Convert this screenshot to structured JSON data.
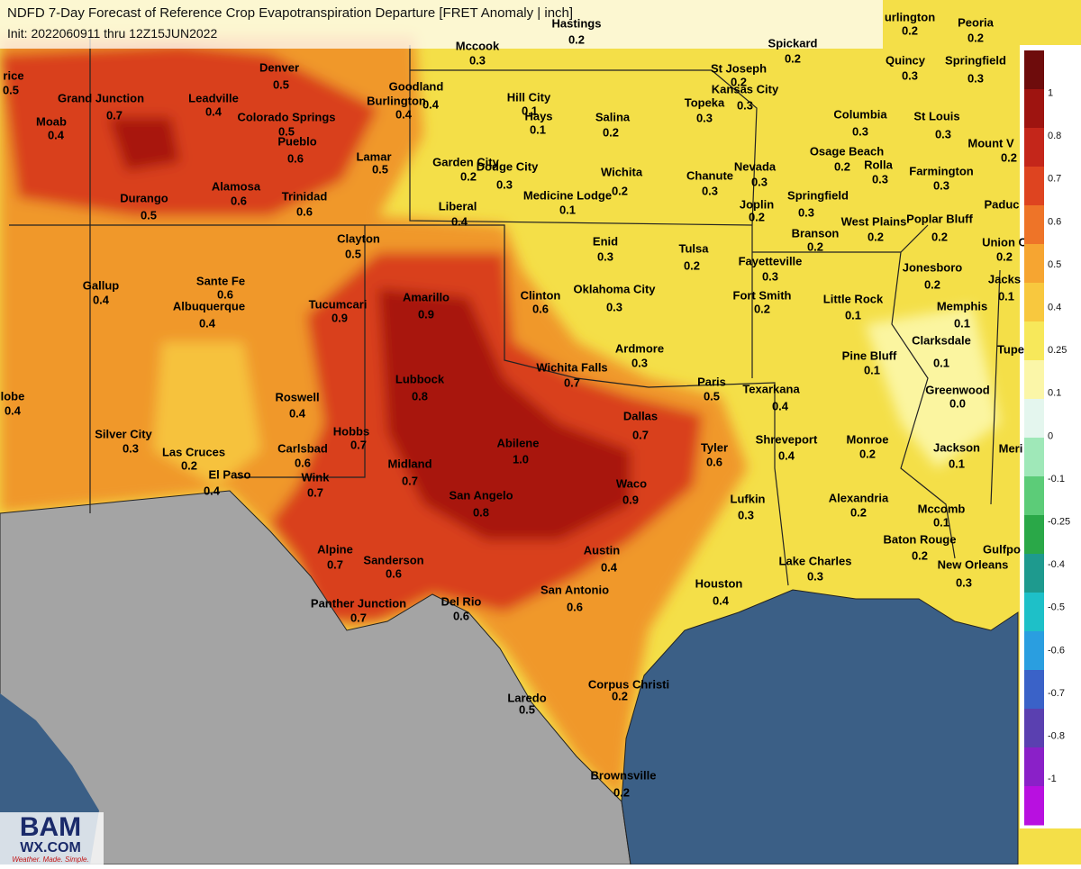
{
  "header": {
    "title": "NDFD 7-Day Forecast of Reference Crop Evapotranspiration Departure [FRET Anomaly | inch]",
    "subtitle": "Init: 2022060911 thru 12Z15JUN2022"
  },
  "cities": [
    {
      "name": "rice",
      "value": "0.5"
    },
    {
      "name": "Grand Junction",
      "value": "0.7"
    },
    {
      "name": "Moab",
      "value": "0.4"
    },
    {
      "name": "Denver",
      "value": "0.5"
    },
    {
      "name": "Leadville",
      "value": "0.4"
    },
    {
      "name": "Colorado Springs",
      "value": "0.5"
    },
    {
      "name": "Pueblo",
      "value": "0.6"
    },
    {
      "name": "Goodland",
      "value": "0.4"
    },
    {
      "name": "Burlington",
      "value": "0.4"
    },
    {
      "name": "Mccook",
      "value": "0.3"
    },
    {
      "name": "Hastings",
      "value": "0.2"
    },
    {
      "name": "Hill City",
      "value": "0.1"
    },
    {
      "name": "Hays",
      "value": "0.1"
    },
    {
      "name": "Salina",
      "value": "0.2"
    },
    {
      "name": "St Joseph",
      "value": "0.2"
    },
    {
      "name": "Kansas City",
      "value": "0.3"
    },
    {
      "name": "Topeka",
      "value": "0.3"
    },
    {
      "name": "Spickard",
      "value": "0.2"
    },
    {
      "name": "Quincy",
      "value": "0.3"
    },
    {
      "name": "Springfield",
      "value": "0.3"
    },
    {
      "name": "Peoria",
      "value": "0.2"
    },
    {
      "name": "urlington",
      "value": "0.2"
    },
    {
      "name": "Columbia",
      "value": "0.3"
    },
    {
      "name": "St Louis",
      "value": "0.3"
    },
    {
      "name": "Mount V",
      "value": "0.2"
    },
    {
      "name": "Lamar",
      "value": "0.5"
    },
    {
      "name": "Alamosa",
      "value": "0.6"
    },
    {
      "name": "Trinidad",
      "value": "0.6"
    },
    {
      "name": "Durango",
      "value": "0.5"
    },
    {
      "name": "Garden City",
      "value": "0.2"
    },
    {
      "name": "Dodge City",
      "value": "0.3"
    },
    {
      "name": "Wichita",
      "value": "0.2"
    },
    {
      "name": "Medicine Lodge",
      "value": "0.1"
    },
    {
      "name": "Liberal",
      "value": "0.4"
    },
    {
      "name": "Chanute",
      "value": "0.3"
    },
    {
      "name": "Nevada",
      "value": "0.3"
    },
    {
      "name": "Osage Beach",
      "value": "0.2"
    },
    {
      "name": "Rolla",
      "value": "0.3"
    },
    {
      "name": "Farmington",
      "value": "0.3"
    },
    {
      "name": "Joplin",
      "value": "0.2"
    },
    {
      "name": "Springfield",
      "value": "0.3"
    },
    {
      "name": "Branson",
      "value": "0.2"
    },
    {
      "name": "West Plains",
      "value": "0.2"
    },
    {
      "name": "Poplar Bluff",
      "value": "0.2"
    },
    {
      "name": "Union C",
      "value": "0.2"
    },
    {
      "name": "Clayton",
      "value": "0.5"
    },
    {
      "name": "Gallup",
      "value": "0.4"
    },
    {
      "name": "Sante Fe",
      "value": "0.6"
    },
    {
      "name": "Albuquerque",
      "value": "0.4"
    },
    {
      "name": "Tucumcari",
      "value": "0.9"
    },
    {
      "name": "Amarillo",
      "value": "0.9"
    },
    {
      "name": "Enid",
      "value": "0.3"
    },
    {
      "name": "Tulsa",
      "value": "0.2"
    },
    {
      "name": "Fayetteville",
      "value": "0.3"
    },
    {
      "name": "Jonesboro",
      "value": "0.2"
    },
    {
      "name": "Jacks",
      "value": "0.1"
    },
    {
      "name": "Clinton",
      "value": "0.6"
    },
    {
      "name": "Oklahoma City",
      "value": "0.3"
    },
    {
      "name": "Fort Smith",
      "value": "0.2"
    },
    {
      "name": "Little Rock",
      "value": "0.1"
    },
    {
      "name": "Memphis",
      "value": "0.1"
    },
    {
      "name": "Ardmore",
      "value": "0.3"
    },
    {
      "name": "Wichita Falls",
      "value": "0.7"
    },
    {
      "name": "Clarksdale",
      "value": "0.1"
    },
    {
      "name": "Pine Bluff",
      "value": "0.1"
    },
    {
      "name": "Lubbock",
      "value": "0.8"
    },
    {
      "name": "Roswell",
      "value": "0.4"
    },
    {
      "name": "Paris",
      "value": "0.5"
    },
    {
      "name": "Texarkana",
      "value": "0.4"
    },
    {
      "name": "Greenwood",
      "value": "0.0"
    },
    {
      "name": "lobe",
      "value": "0.4"
    },
    {
      "name": "Silver City",
      "value": "0.3"
    },
    {
      "name": "Hobbs",
      "value": "0.7"
    },
    {
      "name": "Dallas",
      "value": "0.7"
    },
    {
      "name": "Shreveport",
      "value": "0.4"
    },
    {
      "name": "Monroe",
      "value": "0.2"
    },
    {
      "name": "Jackson",
      "value": "0.1"
    },
    {
      "name": "Las Cruces",
      "value": "0.2"
    },
    {
      "name": "Carlsbad",
      "value": "0.6"
    },
    {
      "name": "Abilene",
      "value": "1.0"
    },
    {
      "name": "Tyler",
      "value": "0.6"
    },
    {
      "name": "Midland",
      "value": "0.7"
    },
    {
      "name": "El Paso",
      "value": "0.4"
    },
    {
      "name": "Wink",
      "value": "0.7"
    },
    {
      "name": "Waco",
      "value": "0.9"
    },
    {
      "name": "Lufkin",
      "value": "0.3"
    },
    {
      "name": "Alexandria",
      "value": "0.2"
    },
    {
      "name": "Mccomb",
      "value": "0.1"
    },
    {
      "name": "San Angelo",
      "value": "0.8"
    },
    {
      "name": "Baton Rouge",
      "value": "0.2"
    },
    {
      "name": "Alpine",
      "value": "0.7"
    },
    {
      "name": "Sanderson",
      "value": "0.6"
    },
    {
      "name": "Austin",
      "value": "0.4"
    },
    {
      "name": "Lake Charles",
      "value": "0.3"
    },
    {
      "name": "New Orleans",
      "value": "0.3"
    },
    {
      "name": "Houston",
      "value": "0.4"
    },
    {
      "name": "San Antonio",
      "value": "0.6"
    },
    {
      "name": "Panther Junction",
      "value": "0.7"
    },
    {
      "name": "Del Rio",
      "value": "0.6"
    },
    {
      "name": "Corpus Christi",
      "value": "0.2"
    },
    {
      "name": "Laredo",
      "value": "0.5"
    },
    {
      "name": "Brownsville",
      "value": "0.2"
    },
    {
      "name": "Paduc"
    },
    {
      "name": "Tupe"
    },
    {
      "name": "Meri"
    },
    {
      "name": "Gulfpo"
    }
  ],
  "legend": {
    "labels": [
      "1",
      "0.8",
      "0.7",
      "0.6",
      "0.5",
      "0.4",
      "0.25",
      "0.1",
      "0",
      "-0.1",
      "-0.25",
      "-0.4",
      "-0.5",
      "-0.6",
      "-0.7",
      "-0.8",
      "-1"
    ],
    "colors": [
      "#6e0c0c",
      "#9e1410",
      "#c4261a",
      "#de4420",
      "#ee7428",
      "#f6a531",
      "#f8c83e",
      "#f7e85a",
      "#fbf6a8",
      "#e4f6ee",
      "#9fe8b8",
      "#5ccc78",
      "#2aa848",
      "#1e9a8e",
      "#1ec0c8",
      "#2a9ee0",
      "#3a62c8",
      "#5a40b0",
      "#8a20c8",
      "#b810e0"
    ]
  },
  "logo": {
    "name": "BAM",
    "site": "WX.COM",
    "slogan": "Weather. Made. Simple."
  }
}
